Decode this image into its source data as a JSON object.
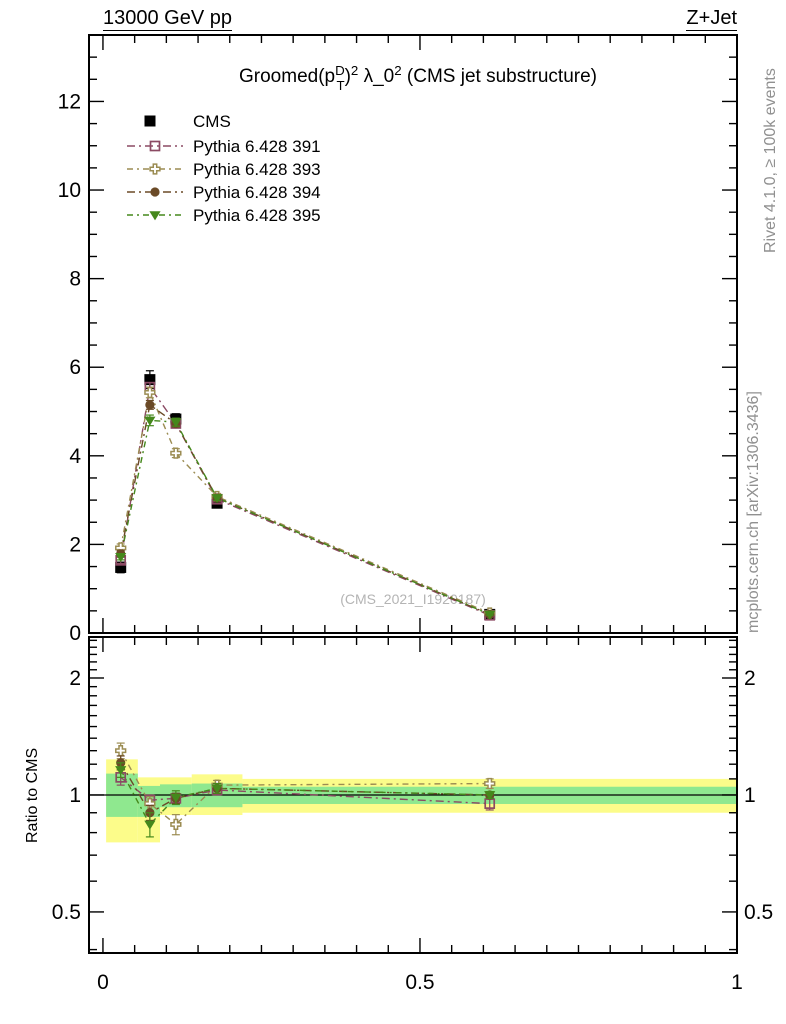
{
  "header": {
    "left": "13000 GeV pp",
    "right": "Z+Jet"
  },
  "side_notes": {
    "top": "Rivet 4.1.0, ≥ 100k events",
    "bottom": "mcplots.cern.ch [arXiv:1306.3436]"
  },
  "watermark": "(CMS_2021_I1920187)",
  "ratio_axis_label": "Ratio to CMS",
  "chart_data": {
    "type": "line",
    "title_plain": "Groomed (p_T^D)^2 λ_0^2 (CMS jet substructure)",
    "title_rich": [
      {
        "t": "Groomed("
      },
      {
        "t": "p"
      },
      {
        "t": "D",
        "pos": "sup"
      },
      {
        "t": "T",
        "pos": "sub",
        "stack": true
      },
      {
        "t": ")"
      },
      {
        "t": "2",
        "pos": "sup"
      },
      {
        "t": " λ_0"
      },
      {
        "t": "2",
        "pos": "sup"
      },
      {
        "t": " (CMS jet substructure)"
      }
    ],
    "x_axis": {
      "min": -0.022,
      "max": 1.0,
      "ticks_major": [
        0,
        0.5,
        1
      ],
      "tick_labels": [
        "0",
        "0.5",
        "1"
      ],
      "minor_step": 0.05,
      "minor_from": 0,
      "minor_to": 1.0
    },
    "y_main_axis": {
      "min": 0,
      "max": 13.5,
      "ticks_major": [
        0,
        2,
        4,
        6,
        8,
        10,
        12
      ],
      "tick_labels": [
        "0",
        "2",
        "4",
        "6",
        "8",
        "10",
        "12"
      ],
      "minor_step": 0.5
    },
    "y_ratio_axis": {
      "scale": "log",
      "min": 0.392,
      "max": 2.55,
      "ticks_major": [
        0.5,
        1,
        2
      ],
      "tick_labels": [
        "0.5",
        "1",
        "2"
      ],
      "ticks_minor": [
        0.4,
        0.6,
        0.7,
        0.8,
        0.9,
        1.1,
        1.2,
        1.3,
        1.4,
        1.5,
        1.6,
        1.7,
        1.8,
        1.9,
        2.1,
        2.2,
        2.3,
        2.4,
        2.5
      ]
    },
    "bin_centers": [
      0.028,
      0.074,
      0.115,
      0.18,
      0.61
    ],
    "bin_edges": [
      [
        0.005,
        0.055
      ],
      [
        0.055,
        0.09
      ],
      [
        0.09,
        0.14
      ],
      [
        0.14,
        0.22
      ],
      [
        0.22,
        1.0
      ]
    ],
    "series": [
      {
        "name": "CMS",
        "marker": "square-filled",
        "color": "#000000",
        "is_data": true,
        "values": [
          1.48,
          5.72,
          4.83,
          2.93,
          0.42
        ],
        "errors": [
          0.12,
          0.2,
          0.12,
          0.08,
          0.03
        ]
      },
      {
        "name": "Pythia 6.428 391",
        "marker": "square-open",
        "color": "#8b4a63",
        "is_data": false,
        "values": [
          1.64,
          5.55,
          4.73,
          3.02,
          0.4
        ],
        "errors": [
          0.07,
          0.1,
          0.08,
          0.06,
          0.02
        ],
        "ratio": [
          1.11,
          0.97,
          0.98,
          1.03,
          0.95
        ],
        "ratio_err": [
          0.05,
          0.03,
          0.03,
          0.03,
          0.035
        ]
      },
      {
        "name": "Pythia 6.428 393",
        "marker": "cross-open",
        "color": "#9b8c52",
        "is_data": false,
        "values": [
          1.92,
          5.43,
          4.06,
          3.08,
          0.45
        ],
        "errors": [
          0.09,
          0.12,
          0.1,
          0.07,
          0.02
        ],
        "ratio": [
          1.3,
          0.95,
          0.84,
          1.06,
          1.07
        ],
        "ratio_err": [
          0.06,
          0.04,
          0.05,
          0.03,
          0.03
        ]
      },
      {
        "name": "Pythia 6.428 394",
        "marker": "circle-filled",
        "color": "#6b4a27",
        "is_data": false,
        "values": [
          1.79,
          5.15,
          4.73,
          3.05,
          0.42
        ],
        "errors": [
          0.07,
          0.1,
          0.08,
          0.06,
          0.02
        ],
        "ratio": [
          1.21,
          0.9,
          0.98,
          1.04,
          1.0
        ],
        "ratio_err": [
          0.05,
          0.04,
          0.03,
          0.03,
          0.02
        ]
      },
      {
        "name": "Pythia 6.428 395",
        "marker": "triangle-down-filled",
        "color": "#45881c",
        "is_data": false,
        "values": [
          1.72,
          4.8,
          4.76,
          3.05,
          0.42
        ],
        "errors": [
          0.07,
          0.12,
          0.09,
          0.06,
          0.02
        ],
        "ratio": [
          1.16,
          0.84,
          0.985,
          1.04,
          1.0
        ],
        "ratio_err": [
          0.05,
          0.06,
          0.04,
          0.03,
          0.02
        ]
      }
    ],
    "ratio_bands": {
      "yellow_color": "#fcfc8a",
      "green_color": "#8fe88f",
      "bins": [
        {
          "x": [
            0.005,
            0.055
          ],
          "yellow": [
            0.755,
            1.235
          ],
          "green": [
            0.878,
            1.135
          ]
        },
        {
          "x": [
            0.055,
            0.09
          ],
          "yellow": [
            0.755,
            1.11
          ],
          "green": [
            0.878,
            1.055
          ]
        },
        {
          "x": [
            0.09,
            0.14
          ],
          "yellow": [
            0.888,
            1.11
          ],
          "green": [
            0.93,
            1.065
          ]
        },
        {
          "x": [
            0.14,
            0.22
          ],
          "yellow": [
            0.888,
            1.13
          ],
          "green": [
            0.93,
            1.07
          ]
        },
        {
          "x": [
            0.22,
            1.0
          ],
          "yellow": [
            0.9,
            1.1
          ],
          "green": [
            0.948,
            1.05
          ]
        }
      ]
    },
    "reference_line": 1.0,
    "legend_position": "top-left-inside",
    "grid": false
  }
}
